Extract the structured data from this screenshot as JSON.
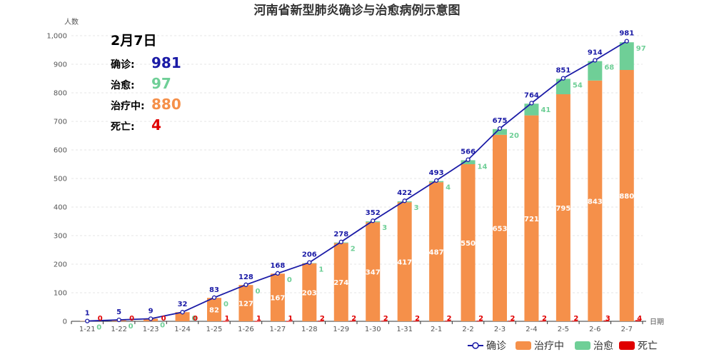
{
  "chart_data": {
    "type": "bar",
    "title": "河南省新型肺炎确诊与治愈病例示意图",
    "ylabel": "人数",
    "xlabel": "日期",
    "ylim": [
      0,
      1000
    ],
    "yticks": [
      "0",
      "100",
      "200",
      "300",
      "400",
      "500",
      "600",
      "700",
      "800",
      "900",
      "1,000"
    ],
    "grid": true,
    "legend_position": "bottom-right",
    "categories": [
      "1-21",
      "1-22",
      "1-23",
      "1-24",
      "1-25",
      "1-26",
      "1-27",
      "1-28",
      "1-29",
      "1-30",
      "1-31",
      "2-1",
      "2-2",
      "2-3",
      "2-4",
      "2-5",
      "2-6",
      "2-7"
    ],
    "series": [
      {
        "name": "确诊",
        "type": "line",
        "color": "#1a1aa6",
        "values": [
          1,
          5,
          9,
          32,
          83,
          128,
          168,
          206,
          278,
          352,
          422,
          493,
          566,
          675,
          764,
          851,
          914,
          981
        ]
      },
      {
        "name": "治疗中",
        "type": "bar",
        "stack": "total",
        "color": "#f5904a",
        "values": [
          1,
          5,
          9,
          32,
          82,
          127,
          167,
          203,
          274,
          347,
          417,
          487,
          550,
          653,
          721,
          795,
          843,
          880
        ]
      },
      {
        "name": "治愈",
        "type": "bar",
        "stack": "total",
        "color": "#6fcf97",
        "values": [
          0,
          0,
          0,
          0,
          0,
          0,
          0,
          1,
          2,
          3,
          3,
          4,
          14,
          20,
          41,
          54,
          68,
          97
        ]
      },
      {
        "name": "死亡",
        "type": "bar",
        "color": "#e00000",
        "values": [
          0,
          0,
          0,
          0,
          1,
          1,
          1,
          2,
          2,
          2,
          2,
          2,
          2,
          2,
          2,
          2,
          3,
          4
        ]
      }
    ]
  },
  "summary": {
    "date": "2月7日",
    "confirmed_label": "确诊:",
    "confirmed": "981",
    "confirmed_color": "#1a1aa6",
    "cured_label": "治愈:",
    "cured": "97",
    "cured_color": "#6fcf97",
    "treating_label": "治疗中:",
    "treating": "880",
    "treating_color": "#f5904a",
    "death_label": "死亡:",
    "death": "4",
    "death_color": "#e00000"
  }
}
